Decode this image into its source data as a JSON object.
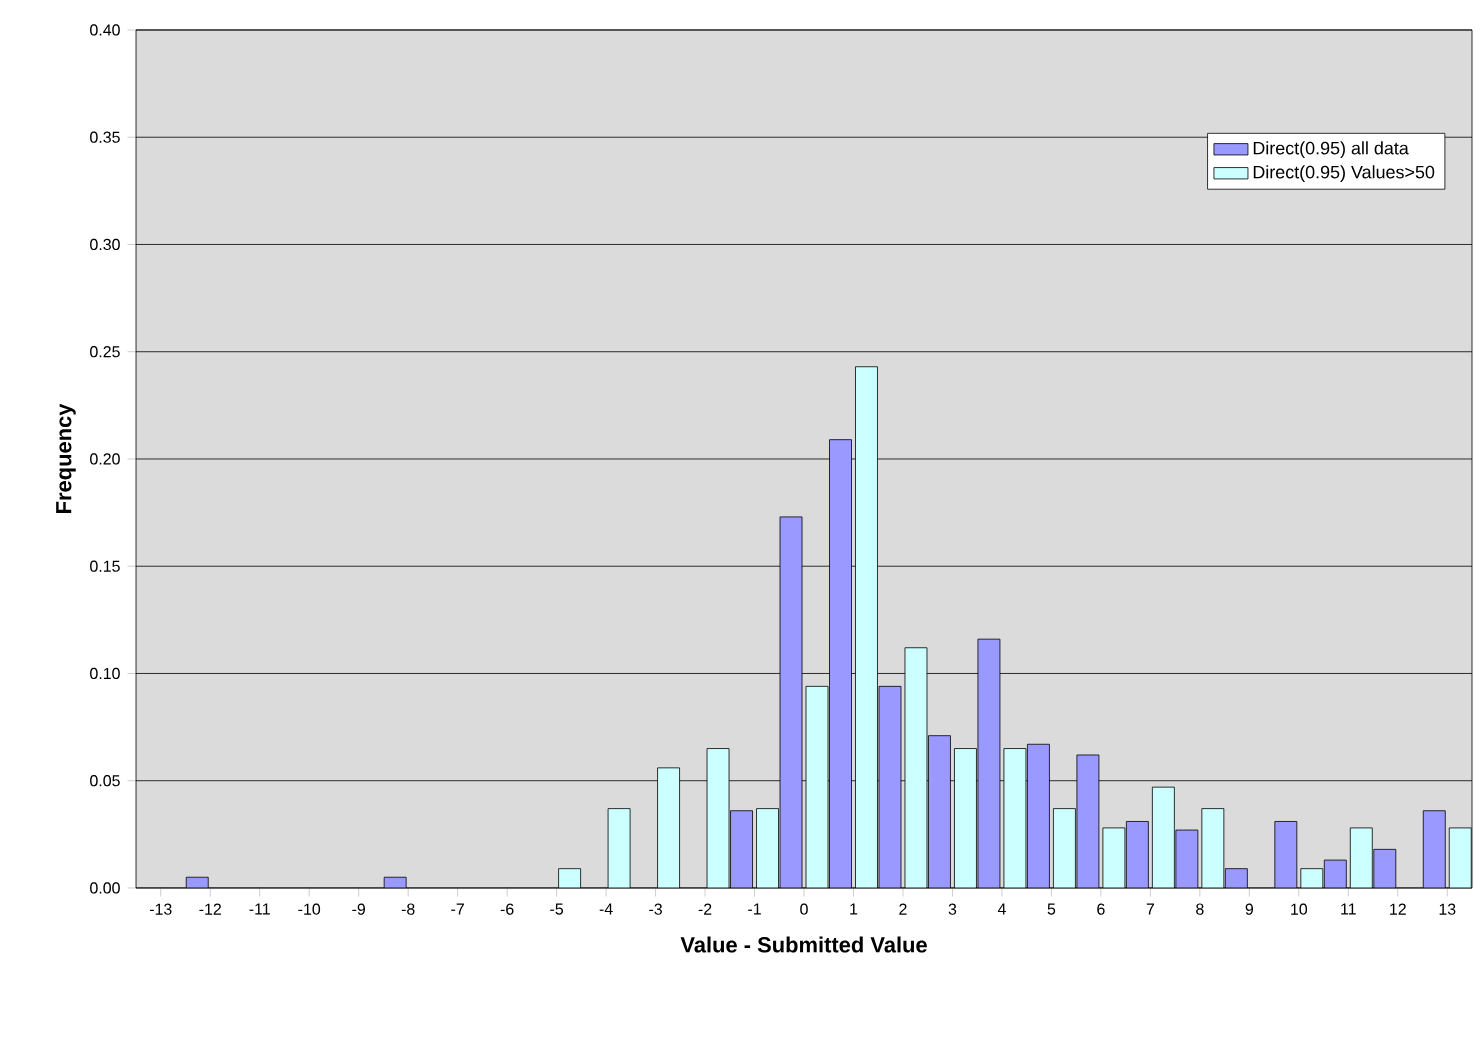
{
  "chart_data": {
    "type": "bar",
    "xlabel": "Value - Submitted Value",
    "ylabel": "Frequency",
    "categories": [
      "-13",
      "-12",
      "-11",
      "-10",
      "-9",
      "-8",
      "-7",
      "-6",
      "-5",
      "-4",
      "-3",
      "-2",
      "-1",
      "0",
      "1",
      "2",
      "3",
      "4",
      "5",
      "6",
      "7",
      "8",
      "9",
      "10",
      "11",
      "12",
      "13"
    ],
    "series": [
      {
        "name": "Direct(0.95) all data",
        "color": "#9999ff",
        "values": [
          0,
          0.005,
          0,
          0,
          0,
          0.005,
          0,
          0,
          0,
          0,
          0,
          0,
          0.036,
          0.173,
          0.209,
          0.094,
          0.071,
          0.116,
          0.067,
          0.062,
          0.031,
          0.027,
          0.009,
          0.031,
          0.013,
          0.018,
          0.036
        ]
      },
      {
        "name": "Direct(0.95)  Values>50",
        "color": "#ccffff",
        "values": [
          0,
          0,
          0,
          0,
          0,
          0,
          0,
          0,
          0.009,
          0.037,
          0.056,
          0.065,
          0.037,
          0.094,
          0.243,
          0.112,
          0.065,
          0.065,
          0.037,
          0.028,
          0.047,
          0.037,
          0,
          0.009,
          0.028,
          0,
          0.028
        ]
      }
    ],
    "ylim": [
      0,
      0.4
    ],
    "yticks": [
      {
        "value": 0,
        "label": "0.00"
      },
      {
        "value": 0.05,
        "label": "0.05"
      },
      {
        "value": 0.1,
        "label": "0.10"
      },
      {
        "value": 0.15,
        "label": "0.15"
      },
      {
        "value": 0.2,
        "label": "0.20"
      },
      {
        "value": 0.25,
        "label": "0.25"
      },
      {
        "value": 0.3,
        "label": "0.30"
      },
      {
        "value": 0.35,
        "label": "0.35"
      },
      {
        "value": 0.4,
        "label": "0.40"
      }
    ],
    "grid": "y",
    "legend": "top right"
  }
}
